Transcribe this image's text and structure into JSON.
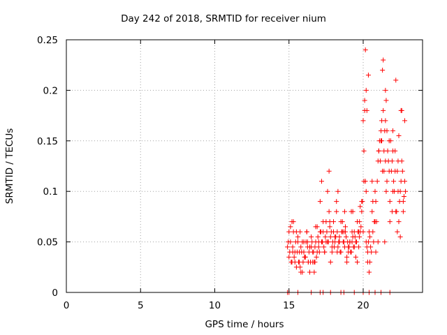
{
  "chart_data": {
    "type": "scatter",
    "title": "Day 242 of 2018, SRMTID for receiver nium",
    "xlabel": "GPS time / hours",
    "ylabel": "SRMTID / TECUs",
    "xlim": [
      0,
      24
    ],
    "ylim": [
      0,
      0.25
    ],
    "xticks": [
      0,
      5,
      10,
      15,
      20
    ],
    "yticks": [
      0,
      0.05,
      0.1,
      0.15,
      0.2,
      0.25
    ],
    "xtick_labels": [
      "0",
      "5",
      "10",
      "15",
      "20"
    ],
    "ytick_labels": [
      "0",
      "0.05",
      "0.1",
      "0.15",
      "0.2",
      "0.25"
    ],
    "grid": true,
    "marker": "+",
    "color": "#ff0000",
    "series": [
      {
        "name": "SRMTID",
        "x": [
          14.9,
          15.0,
          15.1,
          15.2,
          15.3,
          15.4,
          15.5,
          15.6,
          15.7,
          15.8,
          15.9,
          16.0,
          16.1,
          16.2,
          16.3,
          16.4,
          16.5,
          16.6,
          16.7,
          16.8,
          16.9,
          17.0,
          17.1,
          17.2,
          17.3,
          17.4,
          17.5,
          17.6,
          17.7,
          17.8,
          17.9,
          18.0,
          18.1,
          18.2,
          18.3,
          18.4,
          18.5,
          18.6,
          18.7,
          18.8,
          18.9,
          19.0,
          19.1,
          19.2,
          19.3,
          19.4,
          19.5,
          19.6,
          19.7,
          19.8,
          19.9,
          20.0,
          20.1,
          20.2,
          20.3,
          20.4,
          20.5,
          20.6,
          20.7,
          20.8,
          20.9,
          21.0,
          21.1,
          21.2,
          21.3,
          21.4,
          21.5,
          21.6,
          21.7,
          21.8,
          21.9,
          22.0,
          22.1,
          22.2,
          22.3,
          22.4,
          22.5,
          22.6,
          22.7,
          22.8,
          14.95,
          15.05,
          15.15,
          15.25,
          15.35,
          15.45,
          15.55,
          15.65,
          15.75,
          15.85,
          15.95,
          16.05,
          16.15,
          16.25,
          16.35,
          16.45,
          16.55,
          16.65,
          16.75,
          16.85,
          16.95,
          17.05,
          17.15,
          17.25,
          17.35,
          17.45,
          17.55,
          17.65,
          17.75,
          17.85,
          17.95,
          18.05,
          18.15,
          18.25,
          18.35,
          18.45,
          18.55,
          18.65,
          18.75,
          18.85,
          18.95,
          19.05,
          19.15,
          19.25,
          19.35,
          19.45,
          19.55,
          19.65,
          19.75,
          19.85,
          19.95,
          20.05,
          20.15,
          20.25,
          20.35,
          20.45,
          20.55,
          20.65,
          20.75,
          20.85,
          20.95,
          21.05,
          21.15,
          21.25,
          21.35,
          21.45,
          21.55,
          21.65,
          21.75,
          21.85,
          21.95,
          22.05,
          22.15,
          22.25,
          22.35,
          22.45,
          22.55,
          22.65,
          22.75,
          22.85,
          15.0,
          15.2,
          15.4,
          15.6,
          15.8,
          16.0,
          16.2,
          16.4,
          16.6,
          16.8,
          17.0,
          17.2,
          17.4,
          17.6,
          17.8,
          18.0,
          18.2,
          18.4,
          18.6,
          18.8,
          19.0,
          19.2,
          19.4,
          19.6,
          19.8,
          20.0,
          20.1,
          20.2,
          20.3,
          20.4,
          20.6,
          20.8,
          21.0,
          21.2,
          21.3,
          21.4,
          21.5,
          21.6,
          21.8,
          22.0,
          22.2,
          22.3,
          22.4,
          22.6,
          22.8,
          15.1,
          15.3,
          15.5,
          15.7,
          15.9,
          16.1,
          16.3,
          16.5,
          16.7,
          16.9,
          17.1,
          17.3,
          17.5,
          17.7,
          17.9,
          18.1,
          18.3,
          18.5,
          18.7,
          18.9,
          19.1,
          19.3,
          19.5,
          19.7,
          19.9,
          20.05,
          20.15,
          20.25,
          20.45,
          20.65,
          20.85,
          21.05,
          21.25,
          21.45,
          21.55,
          21.75,
          21.95,
          22.15,
          22.35,
          22.55,
          22.7,
          14.9,
          15.0,
          15.6,
          16.5,
          17.1,
          17.3,
          17.8,
          18.5,
          18.7,
          19.4,
          20.0,
          20.4,
          20.8,
          21.2,
          21.8,
          15.25,
          15.75,
          16.25,
          16.75,
          17.25,
          17.75,
          18.25,
          18.75,
          19.25,
          19.75,
          20.2,
          20.35,
          21.35,
          21.5,
          22.0,
          22.5
        ],
        "y": [
          0.045,
          0.035,
          0.05,
          0.03,
          0.06,
          0.04,
          0.025,
          0.055,
          0.03,
          0.045,
          0.02,
          0.05,
          0.035,
          0.06,
          0.03,
          0.045,
          0.055,
          0.04,
          0.03,
          0.05,
          0.065,
          0.045,
          0.09,
          0.05,
          0.06,
          0.04,
          0.07,
          0.05,
          0.08,
          0.055,
          0.045,
          0.06,
          0.05,
          0.09,
          0.045,
          0.055,
          0.04,
          0.06,
          0.05,
          0.065,
          0.035,
          0.045,
          0.05,
          0.04,
          0.055,
          0.06,
          0.05,
          0.07,
          0.045,
          0.06,
          0.08,
          0.17,
          0.19,
          0.05,
          0.04,
          0.06,
          0.045,
          0.08,
          0.05,
          0.1,
          0.07,
          0.13,
          0.15,
          0.16,
          0.12,
          0.14,
          0.17,
          0.11,
          0.13,
          0.09,
          0.12,
          0.14,
          0.1,
          0.08,
          0.12,
          0.07,
          0.1,
          0.13,
          0.09,
          0.11,
          0.05,
          0.04,
          0.03,
          0.045,
          0.035,
          0.05,
          0.04,
          0.03,
          0.025,
          0.04,
          0.03,
          0.035,
          0.05,
          0.045,
          0.04,
          0.03,
          0.05,
          0.04,
          0.045,
          0.035,
          0.055,
          0.04,
          0.06,
          0.05,
          0.045,
          0.055,
          0.06,
          0.05,
          0.065,
          0.06,
          0.05,
          0.045,
          0.055,
          0.06,
          0.05,
          0.04,
          0.06,
          0.05,
          0.045,
          0.055,
          0.05,
          0.045,
          0.04,
          0.05,
          0.045,
          0.055,
          0.05,
          0.06,
          0.055,
          0.065,
          0.09,
          0.14,
          0.11,
          0.045,
          0.05,
          0.055,
          0.04,
          0.06,
          0.07,
          0.09,
          0.11,
          0.14,
          0.13,
          0.15,
          0.18,
          0.16,
          0.19,
          0.14,
          0.12,
          0.15,
          0.13,
          0.11,
          0.12,
          0.08,
          0.1,
          0.09,
          0.11,
          0.12,
          0.095,
          0.1,
          0.06,
          0.07,
          0.03,
          0.05,
          0.02,
          0.04,
          0.06,
          0.02,
          0.03,
          0.065,
          0.05,
          0.11,
          0.04,
          0.1,
          0.03,
          0.07,
          0.08,
          0.05,
          0.07,
          0.06,
          0.04,
          0.08,
          0.045,
          0.03,
          0.085,
          0.06,
          0.18,
          0.2,
          0.03,
          0.02,
          0.11,
          0.07,
          0.05,
          0.15,
          0.22,
          0.12,
          0.2,
          0.16,
          0.07,
          0.16,
          0.21,
          0.06,
          0.155,
          0.18,
          0.17,
          0.065,
          0.07,
          0.06,
          0.04,
          0.05,
          0.035,
          0.03,
          0.045,
          0.02,
          0.04,
          0.06,
          0.07,
          0.05,
          0.12,
          0.04,
          0.055,
          0.1,
          0.07,
          0.06,
          0.03,
          0.05,
          0.08,
          0.035,
          0.06,
          0.09,
          0.11,
          0.24,
          0.18,
          0.03,
          0.09,
          0.04,
          0.14,
          0.17,
          0.05,
          0.1,
          0.15,
          0.08,
          0.14,
          0.13,
          0.18,
          0.08,
          0.0,
          0.0,
          0.0,
          0.0,
          0.0,
          0.0,
          0.0,
          0.0,
          0.0,
          0.0,
          0.0,
          0.0,
          0.0,
          0.0,
          0.0,
          0.04,
          0.06,
          0.05,
          0.03,
          0.05,
          0.07,
          0.04,
          0.08,
          0.06,
          0.07,
          0.1,
          0.215,
          0.23,
          0.13,
          0.1,
          0.055
        ]
      }
    ]
  }
}
